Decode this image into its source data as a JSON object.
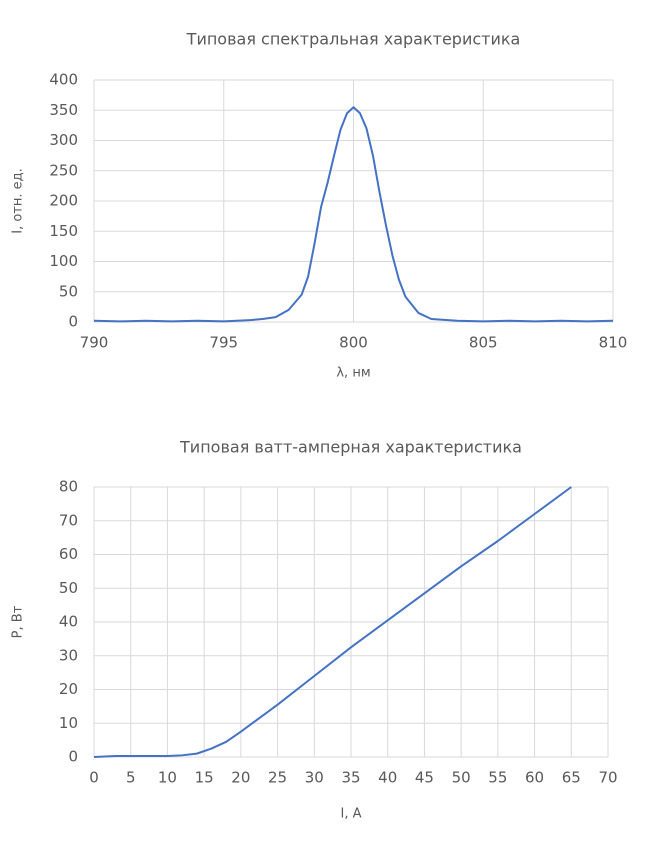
{
  "chart_data": [
    {
      "type": "line",
      "title": "Типовая спектральная характеристика",
      "xlabel": "λ, нм",
      "ylabel": "I, отн. ед.",
      "x": [
        790,
        791,
        792,
        793,
        794,
        795,
        796,
        796.5,
        797,
        797.5,
        798,
        798.25,
        798.5,
        798.75,
        799,
        799.25,
        799.5,
        799.75,
        800,
        800.25,
        800.5,
        800.75,
        801,
        801.25,
        801.5,
        801.75,
        802,
        802.5,
        803,
        804,
        805,
        806,
        807,
        808,
        809,
        810
      ],
      "series": [
        {
          "color": "#4472c4",
          "values": [
            2,
            1,
            2,
            1,
            2,
            1,
            3,
            5,
            8,
            20,
            45,
            75,
            130,
            190,
            230,
            275,
            318,
            345,
            355,
            345,
            320,
            275,
            215,
            160,
            110,
            70,
            42,
            15,
            5,
            2,
            1,
            2,
            1,
            2,
            1,
            2
          ]
        }
      ],
      "xlim": [
        790,
        810
      ],
      "xticks": [
        790,
        795,
        800,
        805,
        810
      ],
      "ylim": [
        0,
        400
      ],
      "yticks": [
        0,
        50,
        100,
        150,
        200,
        250,
        300,
        350,
        400
      ],
      "grid": true
    },
    {
      "type": "line",
      "title": "Типовая ватт-амперная характеристика",
      "xlabel": "I, A",
      "ylabel": "P, Вт",
      "x": [
        0,
        3,
        10,
        12,
        14,
        16,
        18,
        20,
        25,
        30,
        35,
        40,
        45,
        50,
        55,
        60,
        65
      ],
      "series": [
        {
          "color": "#4472c4",
          "values": [
            0,
            0.3,
            0.3,
            0.5,
            1,
            2.5,
            4.5,
            7.5,
            15.5,
            24,
            32.5,
            40.5,
            48.5,
            56.5,
            64,
            72,
            80
          ]
        }
      ],
      "xlim": [
        0,
        70
      ],
      "xticks": [
        0,
        5,
        10,
        15,
        20,
        25,
        30,
        35,
        40,
        45,
        50,
        55,
        60,
        65,
        70
      ],
      "ylim": [
        0,
        80
      ],
      "yticks": [
        0,
        10,
        20,
        30,
        40,
        50,
        60,
        70,
        80
      ],
      "grid": true
    }
  ]
}
